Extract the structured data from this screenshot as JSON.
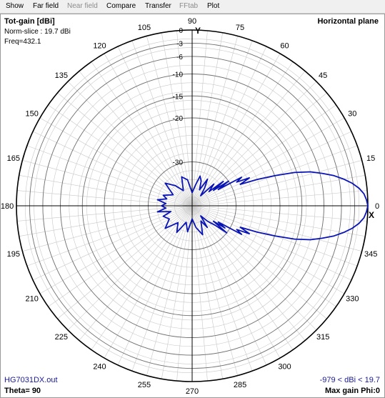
{
  "menu": [
    {
      "label": "Show",
      "enabled": true
    },
    {
      "label": "Far field",
      "enabled": true
    },
    {
      "label": "Near field",
      "enabled": false
    },
    {
      "label": "Compare",
      "enabled": true
    },
    {
      "label": "Transfer",
      "enabled": true
    },
    {
      "label": "FFtab",
      "enabled": false
    },
    {
      "label": "Plot",
      "enabled": true
    }
  ],
  "header": {
    "title": "Tot-gain [dBi]",
    "norm_slice": "Norm-slice : 19.7 dBi",
    "freq": "Freq=432.1",
    "plane": "Horizontal plane"
  },
  "footer": {
    "filename": "HG7031DX.out",
    "theta": "Theta= 90",
    "range": "-979 < dBi < 19.7",
    "max_gain": "Max gain Phi:0"
  },
  "axes": {
    "y_label": "Y",
    "x_label": "X"
  },
  "colors": {
    "trace": "#0a14b4",
    "grid": "#c8c8c8",
    "axis": "#000000",
    "footer_text": "#1a1a9a"
  },
  "chart_data": {
    "type": "polar",
    "angle_ticks": [
      "0",
      "15",
      "30",
      "45",
      "60",
      "75",
      "90",
      "105",
      "120",
      "135",
      "150",
      "165",
      "180",
      "195",
      "210",
      "225",
      "240",
      "255",
      "270",
      "285",
      "300",
      "315",
      "330",
      "345"
    ],
    "angle_tick_values": [
      0,
      15,
      30,
      45,
      60,
      75,
      90,
      105,
      120,
      135,
      150,
      165,
      180,
      195,
      210,
      225,
      240,
      255,
      270,
      285,
      300,
      315,
      330,
      345
    ],
    "radial_ticks": [
      "0",
      "-3",
      "-6",
      "-10",
      "-15",
      "-20",
      "-30"
    ],
    "radial_tick_values": [
      0,
      -3,
      -6,
      -10,
      -15,
      -20,
      -30
    ],
    "series": [
      {
        "angles_deg": [
          0,
          2,
          4,
          6,
          8,
          10,
          12,
          14,
          16,
          18,
          20,
          22,
          24,
          26,
          28,
          30,
          32,
          34,
          36,
          38,
          40,
          45,
          50,
          55,
          60,
          65,
          70,
          75,
          80,
          90,
          100,
          110,
          120,
          130,
          140,
          150,
          160,
          165,
          170,
          175,
          180,
          185,
          190,
          195,
          200,
          210,
          220,
          230,
          240,
          250,
          260,
          270,
          280,
          290,
          300,
          305,
          310,
          315,
          320,
          322,
          324,
          326,
          328,
          330,
          332,
          334,
          336,
          338,
          340,
          342,
          344,
          346,
          348,
          350,
          352,
          354,
          356,
          358,
          360
        ],
        "gain_db": [
          0,
          -0.3,
          -0.8,
          -1.8,
          -3.2,
          -5,
          -7,
          -9.5,
          -12,
          -15.5,
          -20,
          -24,
          -28,
          -25.5,
          -28.5,
          -27,
          -33,
          -30,
          -34,
          -31,
          -35,
          -33,
          -37,
          -35,
          -33,
          -36,
          -34,
          -33,
          -35,
          -37,
          -34,
          -33,
          -36,
          -34,
          -32,
          -35,
          -33,
          -34,
          -32,
          -34,
          -33,
          -34,
          -32,
          -35,
          -33,
          -34,
          -32,
          -35,
          -33,
          -36,
          -34,
          -37,
          -35,
          -33,
          -36,
          -34,
          -37,
          -35,
          -33,
          -30,
          -34,
          -31,
          -33,
          -27,
          -28.5,
          -25.5,
          -28,
          -24,
          -20,
          -15.5,
          -12,
          -9.5,
          -7,
          -5,
          -3.2,
          -1.8,
          -0.8,
          -0.3,
          0
        ]
      }
    ]
  }
}
